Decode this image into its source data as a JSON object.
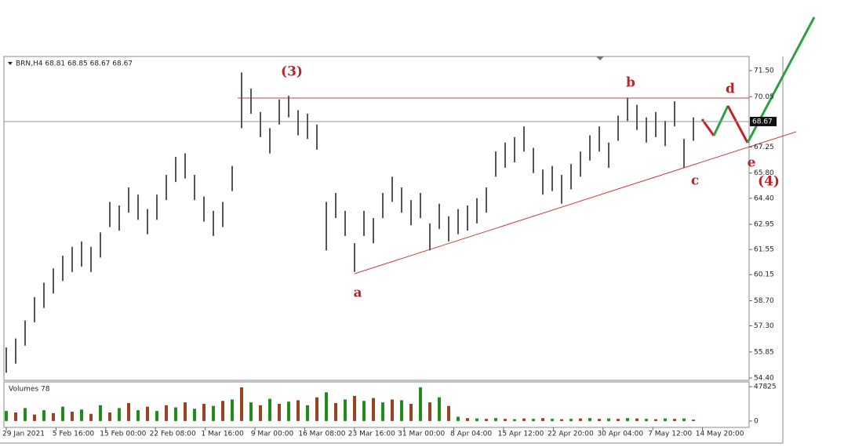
{
  "chart_data": {
    "type": "ohlc",
    "title": "BRN,H4 68.81 68.85 68.67 68.67",
    "highs": [
      56.1,
      56.6,
      57.6,
      58.9,
      59.7,
      60.5,
      61.2,
      61.7,
      62.0,
      61.7,
      62.5,
      64.2,
      64.0,
      65.0,
      64.6,
      63.8,
      64.6,
      65.7,
      66.7,
      66.9,
      65.7,
      64.5,
      63.7,
      64.2,
      66.2,
      71.4,
      70.5,
      69.2,
      68.3,
      69.9,
      70.1,
      69.3,
      69.1,
      68.5,
      64.2,
      64.7,
      63.7,
      61.9,
      63.7,
      63.3,
      64.7,
      65.6,
      65.0,
      64.3,
      64.7,
      63.0,
      64.1,
      63.4,
      63.8,
      64.0,
      64.4,
      65.0,
      67.0,
      67.5,
      67.8,
      68.4,
      67.2,
      66.0,
      66.2,
      65.7,
      66.3,
      67.0,
      67.9,
      68.4,
      67.5,
      69.0,
      70.0,
      69.6,
      68.9,
      69.2,
      68.7,
      69.8,
      67.7,
      68.9
    ],
    "lows": [
      54.7,
      55.2,
      56.2,
      57.5,
      58.3,
      59.1,
      59.8,
      60.3,
      60.6,
      60.3,
      61.1,
      62.8,
      62.6,
      63.6,
      63.2,
      62.4,
      63.2,
      64.3,
      65.3,
      65.5,
      64.3,
      63.1,
      62.3,
      62.8,
      64.8,
      68.3,
      69.1,
      67.8,
      66.9,
      68.5,
      68.9,
      67.9,
      67.7,
      67.1,
      61.5,
      63.3,
      62.3,
      60.3,
      62.3,
      61.9,
      63.3,
      64.2,
      63.6,
      62.9,
      63.3,
      61.5,
      62.7,
      62.0,
      62.4,
      62.6,
      63.0,
      63.6,
      65.6,
      66.1,
      66.4,
      67.0,
      65.8,
      64.6,
      64.8,
      64.1,
      64.9,
      65.6,
      66.5,
      67.0,
      66.1,
      67.6,
      68.7,
      68.2,
      67.5,
      67.8,
      67.3,
      68.4,
      66.1,
      67.6
    ],
    "color": "#555555",
    "ylim": [
      54.27,
      72.29
    ],
    "yticks": [
      {
        "value": 71.5,
        "label": "71.50"
      },
      {
        "value": 70.05,
        "label": "70.05"
      },
      {
        "value": 67.25,
        "label": "67.25"
      },
      {
        "value": 65.8,
        "label": "65.80"
      },
      {
        "value": 64.4,
        "label": "64.40"
      },
      {
        "value": 62.95,
        "label": "62.95"
      },
      {
        "value": 61.55,
        "label": "61.55"
      },
      {
        "value": 60.15,
        "label": "60.15"
      },
      {
        "value": 58.7,
        "label": "58.70"
      },
      {
        "value": 57.3,
        "label": "57.30"
      },
      {
        "value": 55.85,
        "label": "55.85"
      },
      {
        "value": 54.4,
        "label": "54.40"
      }
    ],
    "last_price": 68.67,
    "xtick_labels": [
      "29 Jan 2021",
      "5 Feb 16:00",
      "15 Feb 00:00",
      "22 Feb 08:00",
      "1 Mar 16:00",
      "9 Mar 00:00",
      "16 Mar 08:00",
      "23 Mar 16:00",
      "31 Mar 00:00",
      "8 Apr 04:00",
      "15 Apr 12:00",
      "22 Apr 20:00",
      "30 Apr 04:00",
      "7 May 12:00",
      "14 May 20:00"
    ],
    "annotations": [
      "(3)",
      "a",
      "b",
      "c",
      "d",
      "e",
      "(4)"
    ],
    "volume": {
      "title": "Volumes 78",
      "values": [
        14000,
        12000,
        18000,
        9000,
        15000,
        11000,
        20000,
        13000,
        16000,
        10000,
        22000,
        12000,
        18000,
        25000,
        15000,
        20000,
        14000,
        22000,
        19000,
        26000,
        17000,
        24000,
        21000,
        28000,
        30000,
        47000,
        26000,
        22000,
        31000,
        24000,
        27000,
        29000,
        22000,
        33000,
        40000,
        25000,
        30000,
        35000,
        28000,
        32000,
        26000,
        30000,
        29000,
        24000,
        47000,
        26000,
        33000,
        21000,
        6000,
        4000,
        3500,
        3000,
        4000,
        3000,
        2500,
        3500,
        3000,
        4000,
        3000,
        2500,
        3000,
        3500,
        4000,
        3000,
        3500,
        3000,
        4000,
        3500,
        3000,
        2500,
        3500,
        3000,
        3500,
        2000
      ],
      "color": "#1e8c1e",
      "alt_color": "#a0401a",
      "ylim": [
        -8900,
        54500
      ],
      "yticks": [
        47825,
        0
      ]
    }
  }
}
